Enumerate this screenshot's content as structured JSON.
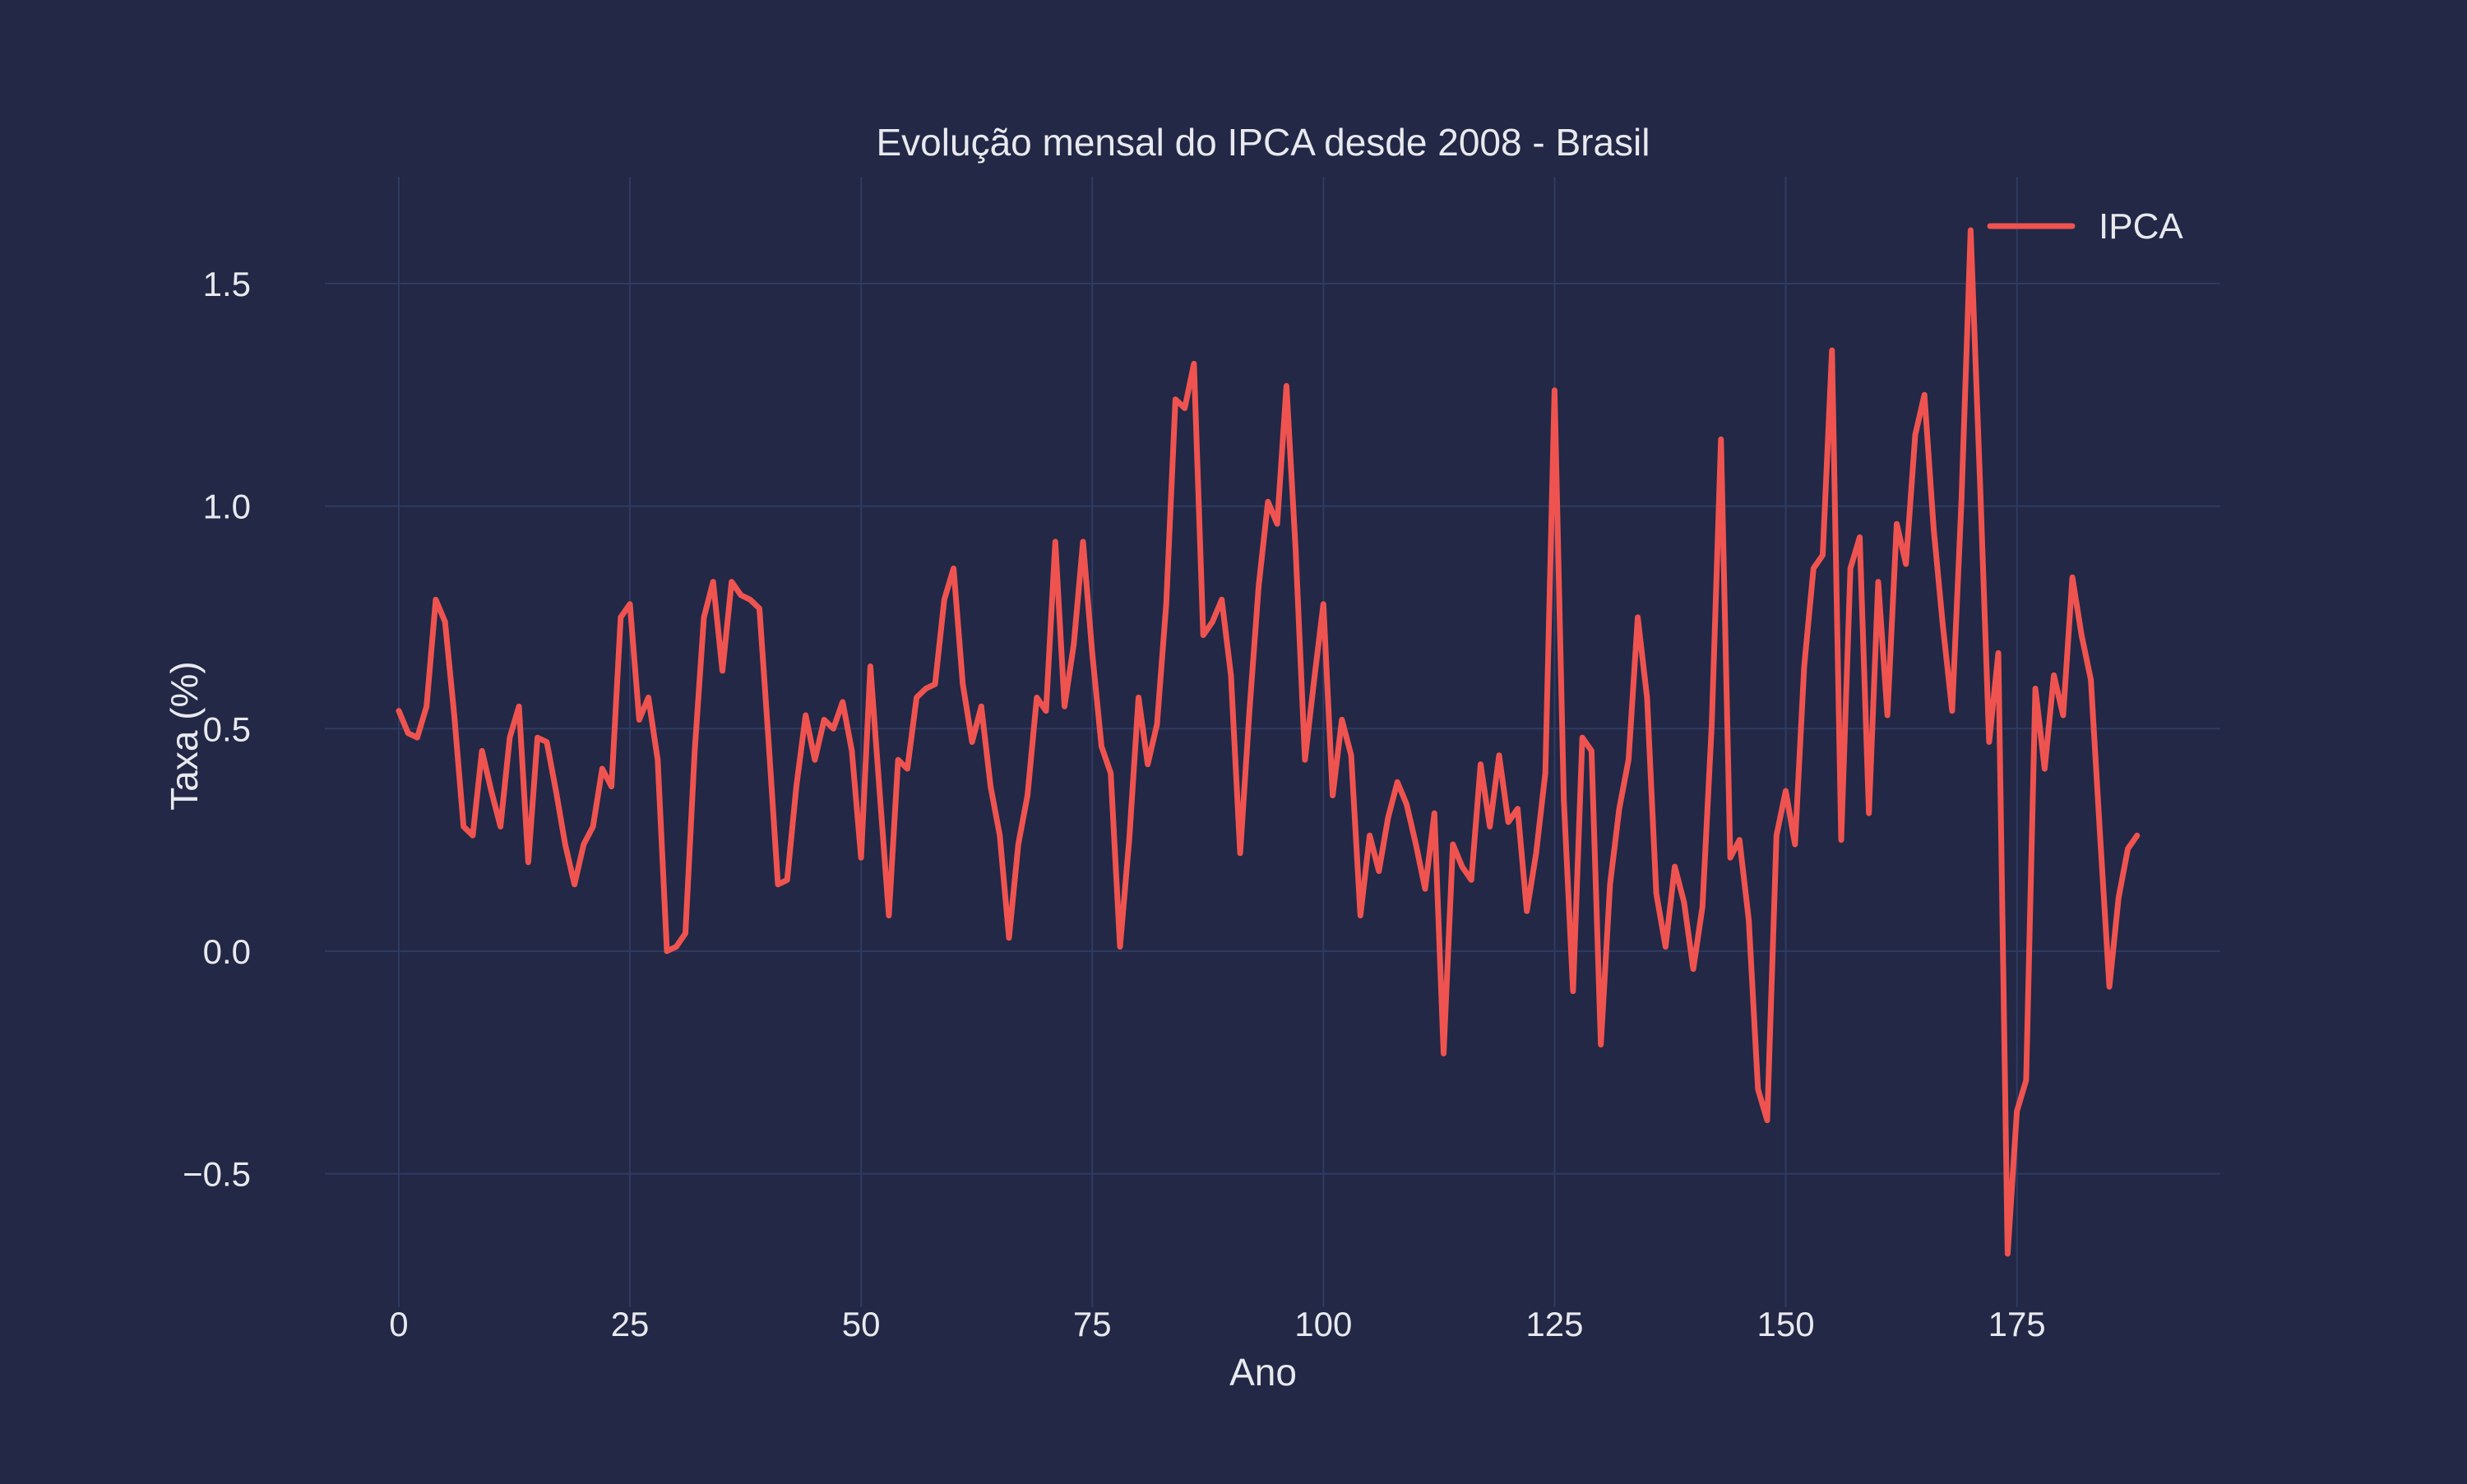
{
  "colors": {
    "background": "#222845",
    "grid": "#2f3b63",
    "text": "#e8e9ef",
    "series": "#ef5350"
  },
  "chart_data": {
    "type": "line",
    "title": "Evolução mensal do IPCA desde 2008 - Brasil",
    "xlabel": "Ano",
    "ylabel": "Taxa (%)",
    "xlim": [
      -8,
      197
    ],
    "ylim": [
      -0.8,
      1.74
    ],
    "x_ticks": [
      0,
      25,
      50,
      75,
      100,
      125,
      150,
      175
    ],
    "x_tick_labels": [
      "0",
      "25",
      "50",
      "75",
      "100",
      "125",
      "150",
      "175"
    ],
    "y_ticks": [
      -0.5,
      0,
      0.5,
      1,
      1.5
    ],
    "y_tick_labels": [
      "−0.5",
      "0.0",
      "0.5",
      "1.0",
      "1.5"
    ],
    "grid": true,
    "legend": "top-right",
    "series": [
      {
        "name": "IPCA",
        "color": "#ef5350",
        "values": [
          0.54,
          0.49,
          0.48,
          0.55,
          0.79,
          0.74,
          0.53,
          0.28,
          0.26,
          0.45,
          0.36,
          0.28,
          0.48,
          0.55,
          0.2,
          0.48,
          0.47,
          0.36,
          0.24,
          0.15,
          0.24,
          0.28,
          0.41,
          0.37,
          0.75,
          0.78,
          0.52,
          0.57,
          0.43,
          0.0,
          0.01,
          0.04,
          0.45,
          0.75,
          0.83,
          0.63,
          0.83,
          0.8,
          0.79,
          0.77,
          0.47,
          0.15,
          0.16,
          0.37,
          0.53,
          0.43,
          0.52,
          0.5,
          0.56,
          0.45,
          0.21,
          0.64,
          0.36,
          0.08,
          0.43,
          0.41,
          0.57,
          0.59,
          0.6,
          0.79,
          0.86,
          0.6,
          0.47,
          0.55,
          0.37,
          0.26,
          0.03,
          0.24,
          0.35,
          0.57,
          0.54,
          0.92,
          0.55,
          0.69,
          0.92,
          0.67,
          0.46,
          0.4,
          0.01,
          0.25,
          0.57,
          0.42,
          0.51,
          0.78,
          1.24,
          1.22,
          1.32,
          0.71,
          0.74,
          0.79,
          0.62,
          0.22,
          0.54,
          0.82,
          1.01,
          0.96,
          1.27,
          0.9,
          0.43,
          0.61,
          0.78,
          0.35,
          0.52,
          0.44,
          0.08,
          0.26,
          0.18,
          0.3,
          0.38,
          0.33,
          0.24,
          0.14,
          0.31,
          -0.23,
          0.24,
          0.19,
          0.16,
          0.42,
          0.28,
          0.44,
          0.29,
          0.32,
          0.09,
          0.22,
          0.4,
          1.26,
          0.34,
          -0.09,
          0.48,
          0.45,
          -0.21,
          0.15,
          0.32,
          0.43,
          0.75,
          0.57,
          0.13,
          0.01,
          0.19,
          0.11,
          -0.04,
          0.1,
          0.51,
          1.15,
          0.21,
          0.25,
          0.07,
          -0.31,
          -0.38,
          0.26,
          0.36,
          0.24,
          0.64,
          0.86,
          0.89,
          1.35,
          0.25,
          0.86,
          0.93,
          0.31,
          0.83,
          0.53,
          0.96,
          0.87,
          1.16,
          1.25,
          0.95,
          0.73,
          0.54,
          1.01,
          1.62,
          1.06,
          0.47,
          0.67,
          -0.68,
          -0.36,
          -0.29,
          0.59,
          0.41,
          0.62,
          0.53,
          0.84,
          0.71,
          0.61,
          0.26,
          -0.08,
          0.12,
          0.23,
          0.26
        ]
      }
    ]
  }
}
